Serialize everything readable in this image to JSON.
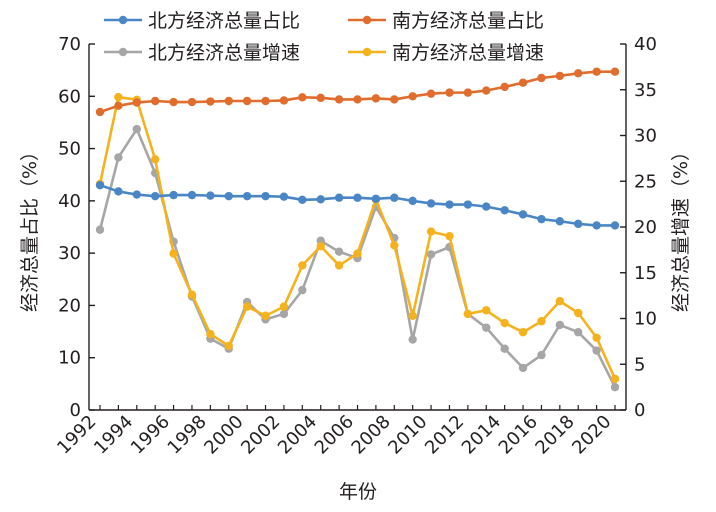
{
  "chart_data": {
    "type": "line",
    "x": [
      1992,
      1993,
      1994,
      1995,
      1996,
      1997,
      1998,
      1999,
      2000,
      2001,
      2002,
      2003,
      2004,
      2005,
      2006,
      2007,
      2008,
      2009,
      2010,
      2011,
      2012,
      2013,
      2014,
      2015,
      2016,
      2017,
      2018,
      2019,
      2020
    ],
    "xlabel": "年份",
    "xticks": [
      "1992",
      "1994",
      "1996",
      "1998",
      "2000",
      "2002",
      "2004",
      "2006",
      "2008",
      "2010",
      "2012",
      "2014",
      "2016",
      "2018",
      "2020"
    ],
    "ylabel_left": "经济总量占比（%）",
    "ylabel_right": "经济总量增速（%）",
    "ylim_left": [
      0,
      70
    ],
    "ylim_right": [
      0,
      40
    ],
    "yticks_left": [
      "0",
      "10",
      "20",
      "30",
      "40",
      "50",
      "60",
      "70"
    ],
    "yticks_right": [
      "0",
      "5",
      "10",
      "15",
      "20",
      "25",
      "30",
      "35",
      "40"
    ],
    "grid": false,
    "legend_position": "top",
    "series": [
      {
        "name": "北方经济总量占比",
        "axis": "left",
        "color": "#4a86c5",
        "values": [
          43.0,
          41.8,
          41.2,
          40.9,
          41.1,
          41.1,
          41.0,
          40.9,
          40.9,
          40.9,
          40.8,
          40.2,
          40.3,
          40.6,
          40.6,
          40.4,
          40.6,
          40.0,
          39.5,
          39.3,
          39.3,
          38.9,
          38.2,
          37.4,
          36.5,
          36.1,
          35.6,
          35.3,
          35.3
        ]
      },
      {
        "name": "南方经济总量占比",
        "axis": "left",
        "color": "#e06c2d",
        "values": [
          57.0,
          58.2,
          58.8,
          59.1,
          58.9,
          58.9,
          59.0,
          59.1,
          59.1,
          59.1,
          59.2,
          59.8,
          59.7,
          59.4,
          59.4,
          59.6,
          59.4,
          60.0,
          60.5,
          60.7,
          60.7,
          61.1,
          61.8,
          62.6,
          63.5,
          63.9,
          64.4,
          64.7,
          64.7
        ]
      },
      {
        "name": "北方经济总量增速",
        "axis": "right",
        "color": "#a6a6a6",
        "values": [
          19.7,
          27.6,
          30.7,
          25.9,
          18.4,
          12.4,
          7.8,
          6.7,
          11.8,
          9.9,
          10.5,
          13.1,
          18.5,
          17.3,
          16.6,
          22.2,
          18.8,
          7.7,
          17.0,
          17.8,
          10.5,
          9.0,
          6.7,
          4.6,
          6.0,
          9.3,
          8.5,
          6.5,
          2.5
        ]
      },
      {
        "name": "南方经济总量增速",
        "axis": "right",
        "color": "#f5b21d",
        "values": [
          24.7,
          34.2,
          33.9,
          27.4,
          17.1,
          12.6,
          8.3,
          7.0,
          11.3,
          10.3,
          11.3,
          15.8,
          17.9,
          15.8,
          17.1,
          23.0,
          18.0,
          10.3,
          19.5,
          19.0,
          10.5,
          10.9,
          9.5,
          8.5,
          9.7,
          11.9,
          10.6,
          7.9,
          3.4
        ]
      }
    ]
  }
}
